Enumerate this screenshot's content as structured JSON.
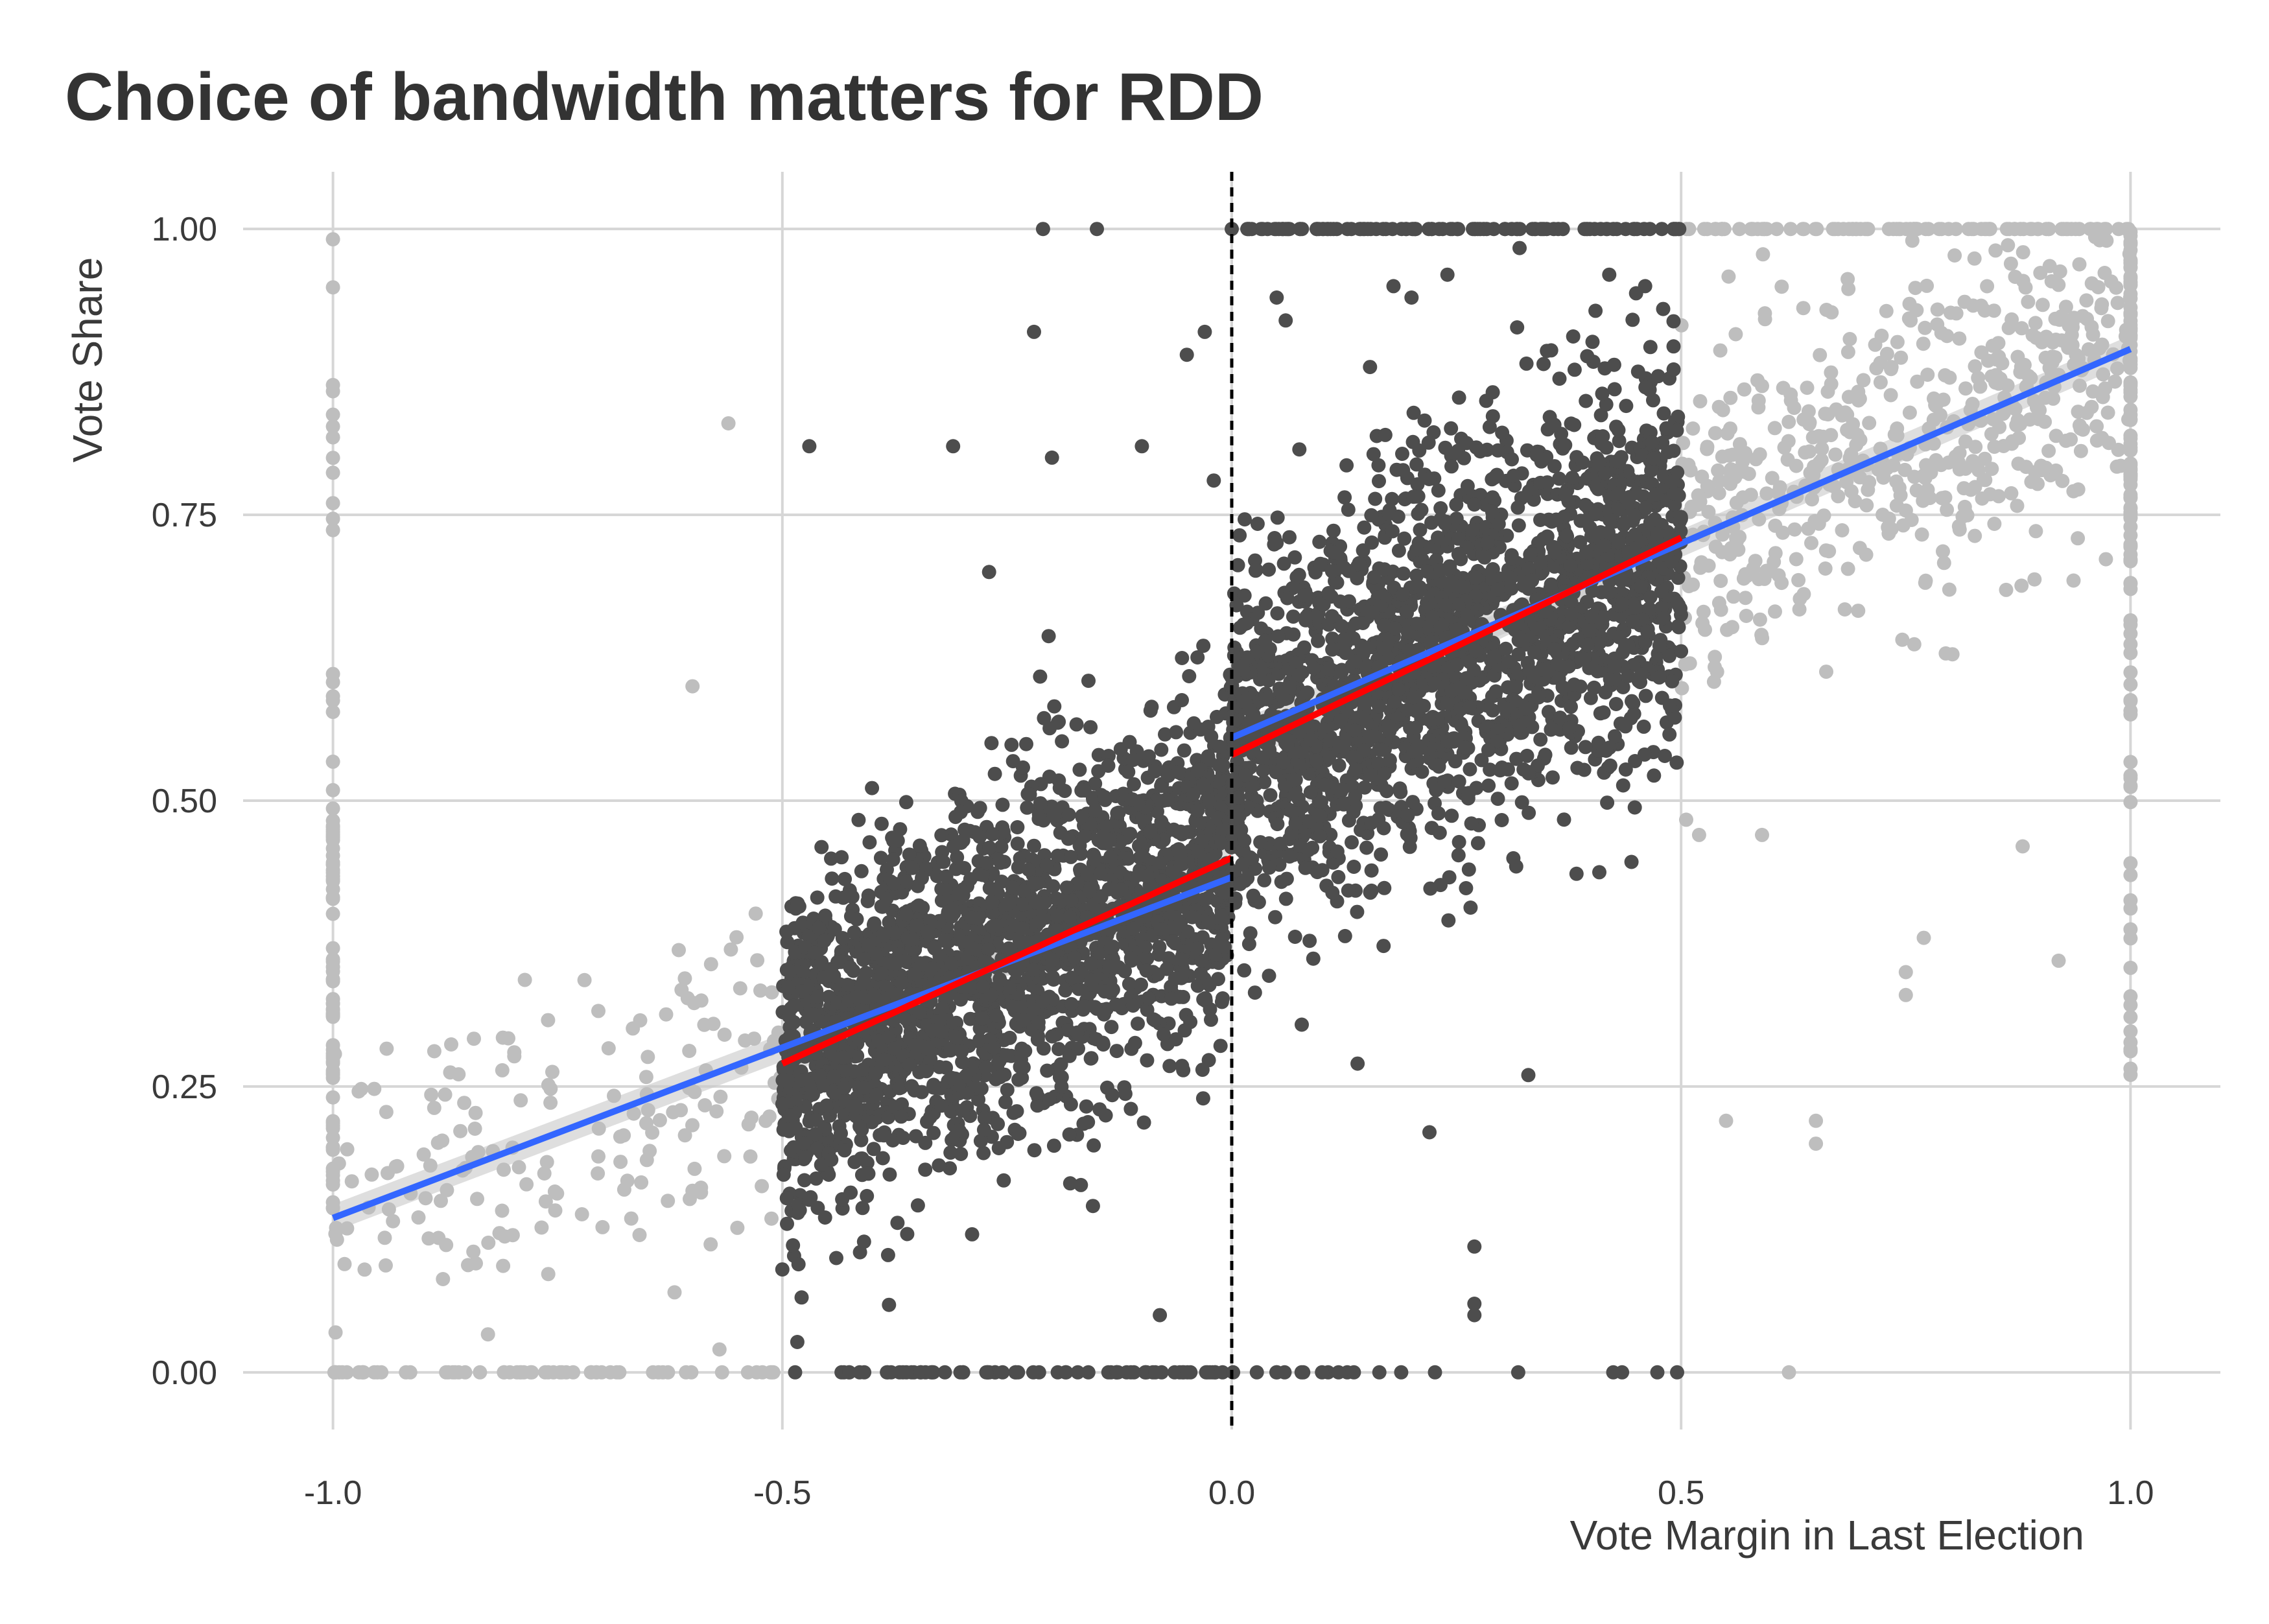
{
  "chart_data": {
    "type": "scatter",
    "title": "Choice of bandwidth matters for RDD",
    "xlabel": "Vote Margin in Last Election",
    "ylabel": "Vote Share",
    "xlim": [
      -1.1,
      1.1
    ],
    "ylim": [
      -0.05,
      1.05
    ],
    "x_ticks": [
      -1.0,
      -0.5,
      0.0,
      0.5,
      1.0
    ],
    "x_tick_labels": [
      "-1.0",
      "-0.5",
      "0.0",
      "0.5",
      "1.0"
    ],
    "y_ticks": [
      0.0,
      0.25,
      0.5,
      0.75,
      1.0
    ],
    "y_tick_labels": [
      "0.00",
      "0.25",
      "0.50",
      "0.75",
      "1.00"
    ],
    "grid": true,
    "legend": "none",
    "cutoff": {
      "x": 0.0,
      "style": "dashed",
      "color": "#000000"
    },
    "bandwidth": [
      -0.5,
      0.5
    ],
    "colors": {
      "points_in_bandwidth": "#4d4d4d",
      "points_outside_bandwidth": "#bebebe",
      "fit_full_range": "#3366ff",
      "fit_bandwidth": "#ff0000",
      "confidence_band": "#c8c8c8",
      "grid": "#d6d6d6"
    },
    "fits": [
      {
        "id": "full-left",
        "color": "#3366ff",
        "x": [
          -1.0,
          0.0
        ],
        "y": [
          0.135,
          0.433
        ]
      },
      {
        "id": "full-right",
        "color": "#3366ff",
        "x": [
          0.0,
          1.0
        ],
        "y": [
          0.555,
          0.895
        ]
      },
      {
        "id": "bw-left",
        "color": "#ff0000",
        "x": [
          -0.5,
          0.0
        ],
        "y": [
          0.27,
          0.45
        ]
      },
      {
        "id": "bw-right",
        "color": "#ff0000",
        "x": [
          0.0,
          0.5
        ],
        "y": [
          0.54,
          0.73
        ]
      }
    ],
    "scatter_groups": [
      {
        "id": "grey-left-cloud",
        "color": "#bebebe",
        "n": 170,
        "x_range": [
          -1.0,
          -0.5
        ],
        "relation": {
          "a": 0.43,
          "b": 0.29,
          "sd": 0.065
        }
      },
      {
        "id": "grey-right-cloud",
        "color": "#bebebe",
        "n": 560,
        "x_range": [
          0.5,
          1.0
        ],
        "relation": {
          "a": 0.55,
          "b": 0.35,
          "sd": 0.07
        }
      },
      {
        "id": "grey-x-minus-one",
        "color": "#bebebe",
        "n": 90,
        "x": -1.0,
        "y_range": [
          0.14,
          1.0
        ]
      },
      {
        "id": "grey-x-one",
        "color": "#bebebe",
        "n": 120,
        "x": 1.0,
        "y_range": [
          0.26,
          1.0
        ]
      },
      {
        "id": "grey-y-zero",
        "color": "#bebebe",
        "n": 60,
        "y": 0.0,
        "x_range": [
          -1.0,
          -0.5
        ]
      },
      {
        "id": "grey-y-one",
        "color": "#bebebe",
        "n": 90,
        "y": 1.0,
        "x_range": [
          0.5,
          1.0
        ]
      },
      {
        "id": "dark-left-cloud",
        "color": "#4d4d4d",
        "n": 2100,
        "x_range": [
          -0.5,
          0.0
        ],
        "relation": {
          "a": 0.45,
          "b": 0.36,
          "sd": 0.075
        }
      },
      {
        "id": "dark-right-cloud",
        "color": "#4d4d4d",
        "n": 2100,
        "x_range": [
          0.0,
          0.5
        ],
        "relation": {
          "a": 0.54,
          "b": 0.38,
          "sd": 0.085
        }
      },
      {
        "id": "dark-y-zero-left",
        "color": "#4d4d4d",
        "n": 70,
        "y": 0.0,
        "x_range": [
          -0.5,
          -0.01
        ]
      },
      {
        "id": "dark-y-zero-right",
        "color": "#4d4d4d",
        "n": 20,
        "y": 0.0,
        "x_range": [
          0.0,
          0.5
        ]
      },
      {
        "id": "dark-y-one-right",
        "color": "#4d4d4d",
        "n": 110,
        "y": 1.0,
        "x_range": [
          0.0,
          0.5
        ]
      }
    ],
    "sample_points": [
      {
        "x": -0.21,
        "y": 1.0,
        "group": "dark"
      },
      {
        "x": -0.15,
        "y": 1.0,
        "group": "dark"
      },
      {
        "x": -0.22,
        "y": 0.91,
        "group": "dark"
      },
      {
        "x": -0.05,
        "y": 0.89,
        "group": "dark"
      },
      {
        "x": -0.03,
        "y": 0.91,
        "group": "dark"
      },
      {
        "x": -0.47,
        "y": 0.81,
        "group": "dark"
      },
      {
        "x": -0.31,
        "y": 0.81,
        "group": "dark"
      },
      {
        "x": -0.1,
        "y": 0.81,
        "group": "dark"
      },
      {
        "x": -0.2,
        "y": 0.8,
        "group": "dark"
      },
      {
        "x": -0.27,
        "y": 0.7,
        "group": "dark"
      },
      {
        "x": -0.02,
        "y": 0.78,
        "group": "dark"
      },
      {
        "x": -0.5,
        "y": 0.09,
        "group": "dark"
      },
      {
        "x": -0.44,
        "y": 0.1,
        "group": "dark"
      },
      {
        "x": -0.08,
        "y": 0.05,
        "group": "dark"
      },
      {
        "x": 0.14,
        "y": 0.27,
        "group": "dark"
      },
      {
        "x": 0.33,
        "y": 0.26,
        "group": "dark"
      },
      {
        "x": 0.22,
        "y": 0.21,
        "group": "dark"
      },
      {
        "x": 0.27,
        "y": 0.11,
        "group": "dark"
      },
      {
        "x": 0.27,
        "y": 0.06,
        "group": "dark"
      },
      {
        "x": 0.27,
        "y": 0.05,
        "group": "dark"
      },
      {
        "x": 0.05,
        "y": 0.94,
        "group": "dark"
      },
      {
        "x": 0.06,
        "y": 0.92,
        "group": "dark"
      },
      {
        "x": 0.18,
        "y": 0.95,
        "group": "dark"
      },
      {
        "x": 0.2,
        "y": 0.94,
        "group": "dark"
      },
      {
        "x": 0.24,
        "y": 0.96,
        "group": "dark"
      },
      {
        "x": 0.42,
        "y": 0.96,
        "group": "dark"
      },
      {
        "x": 0.46,
        "y": 0.95,
        "group": "dark"
      },
      {
        "x": 0.48,
        "y": 0.93,
        "group": "dark"
      },
      {
        "x": -0.56,
        "y": 0.83,
        "group": "grey"
      },
      {
        "x": -0.6,
        "y": 0.6,
        "group": "grey"
      },
      {
        "x": -0.57,
        "y": 0.02,
        "group": "grey"
      },
      {
        "x": -0.62,
        "y": 0.07,
        "group": "grey"
      },
      {
        "x": -0.88,
        "y": 0.15,
        "group": "grey"
      },
      {
        "x": -0.93,
        "y": 0.18,
        "group": "grey"
      },
      {
        "x": -0.8,
        "y": 0.12,
        "group": "grey"
      },
      {
        "x": 0.62,
        "y": 0.0,
        "group": "grey"
      },
      {
        "x": 0.55,
        "y": 0.22,
        "group": "grey"
      },
      {
        "x": 0.65,
        "y": 0.2,
        "group": "grey"
      },
      {
        "x": 0.65,
        "y": 0.22,
        "group": "grey"
      },
      {
        "x": 0.75,
        "y": 0.35,
        "group": "grey"
      },
      {
        "x": 0.75,
        "y": 0.33,
        "group": "grey"
      },
      {
        "x": 0.77,
        "y": 0.38,
        "group": "grey"
      },
      {
        "x": 0.52,
        "y": 0.47,
        "group": "grey"
      },
      {
        "x": 0.59,
        "y": 0.47,
        "group": "grey"
      },
      {
        "x": 0.88,
        "y": 0.46,
        "group": "grey"
      },
      {
        "x": 0.92,
        "y": 0.36,
        "group": "grey"
      }
    ]
  }
}
